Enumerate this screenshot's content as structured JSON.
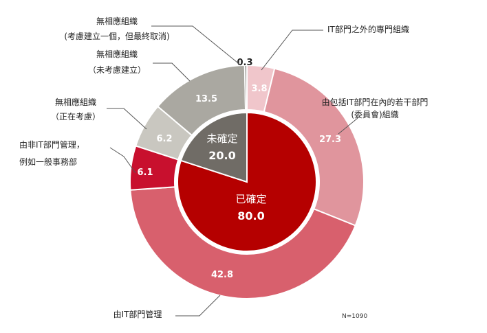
{
  "chart_data": {
    "type": "pie",
    "inner": {
      "labels": [
        "已確定",
        "未確定"
      ],
      "values": [
        80.0,
        20.0
      ],
      "colors": [
        "#b50000",
        "#706c66"
      ]
    },
    "outer": {
      "labels": [
        "IT部門之外的專門組織",
        "由包括IT部門在內的若干部門\n(委員會)組織",
        "由IT部門管理",
        "由非IT部門管理，\n例如一般事務部",
        "無相應組織\n（正在考慮）",
        "無相應組織\n（未考慮建立）",
        "無相應組織\n(考慮建立一個，但最終取消)"
      ],
      "values": [
        3.8,
        27.3,
        42.8,
        6.1,
        6.2,
        13.5,
        0.3
      ],
      "value_labels": [
        "3.8",
        "27.3",
        "42.8",
        "6.1",
        "6.2",
        "13.5",
        "0.3"
      ],
      "colors": [
        "#f0c6cb",
        "#e0959d",
        "#d8606d",
        "#c8102e",
        "#c9c7c0",
        "#aaa8a1",
        "#6b6862"
      ]
    },
    "note": "N=1090"
  }
}
